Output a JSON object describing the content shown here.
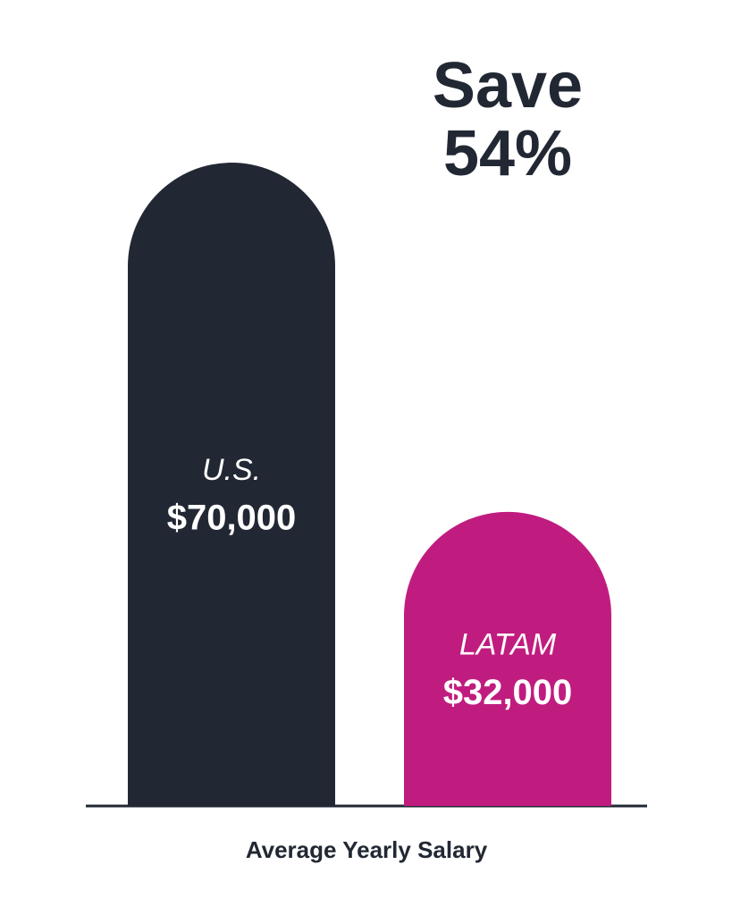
{
  "chart_data": {
    "type": "bar",
    "annotation": "Save 54%",
    "x_label": "Average Yearly Salary",
    "categories": [
      "U.S.",
      "LATAM"
    ],
    "values": [
      70000,
      32000
    ],
    "value_labels": [
      "$70,000",
      "$32,000"
    ],
    "colors": [
      "#222833",
      "#c01c7f"
    ]
  }
}
